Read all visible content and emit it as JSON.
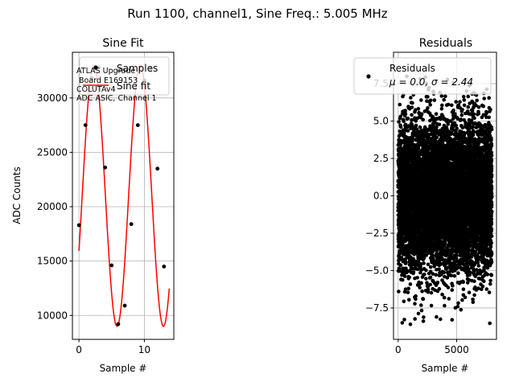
{
  "suptitle": "Run 1100, channel1, Sine Freq.: 5.005 MHz",
  "chart_data": [
    {
      "type": "scatter",
      "title": "Sine Fit",
      "xlabel": "Sample #",
      "ylabel": "ADC Counts",
      "xlim": [
        -1,
        14.5
      ],
      "ylim": [
        7800,
        34200
      ],
      "xticks": [
        0,
        10
      ],
      "yticks": [
        10000,
        15000,
        20000,
        25000,
        30000
      ],
      "grid": true,
      "legend_position": "top-right",
      "annotation": [
        "ATLAS Upgrade",
        "Board E169153",
        "COLUTAv4",
        "ADC ASIC, Channel 1"
      ],
      "series": [
        {
          "name": "Samples",
          "style": "points",
          "color": "#000000",
          "x": [
            0,
            1,
            2,
            3,
            4,
            5,
            6,
            7,
            8,
            9,
            10,
            11,
            12,
            13
          ],
          "y": [
            18300,
            27500,
            31800,
            32800,
            23600,
            14600,
            9200,
            10900,
            18400,
            27500,
            31600,
            32700,
            23500,
            14500
          ]
        },
        {
          "name": "Sine fit",
          "style": "line",
          "color": "#ff0000",
          "model": {
            "offset": 21000,
            "amplitude": 12000,
            "period": 7.1,
            "phase_deg": -25
          },
          "x_range": [
            0,
            13.8
          ]
        }
      ]
    },
    {
      "type": "scatter",
      "title": "Residuals",
      "xlabel": "Sample #",
      "ylabel": "",
      "xlim": [
        -400,
        8400
      ],
      "ylim": [
        -9.6,
        9.6
      ],
      "xticks": [
        0,
        5000
      ],
      "yticks": [
        -7.5,
        -5.0,
        -2.5,
        0.0,
        2.5,
        5.0,
        7.5
      ],
      "ytick_labels": [
        "−7.5",
        "−5.0",
        "−2.5",
        "0.0",
        "2.5",
        "5.0",
        "7.5"
      ],
      "grid": true,
      "legend_position": "top-right",
      "series": [
        {
          "name": "Residuals",
          "legend_stats": "μ = 0.0, σ = 2.44",
          "style": "points",
          "color": "#000000",
          "n_points": 8000,
          "mean": 0.0,
          "std": 2.44
        }
      ]
    }
  ]
}
